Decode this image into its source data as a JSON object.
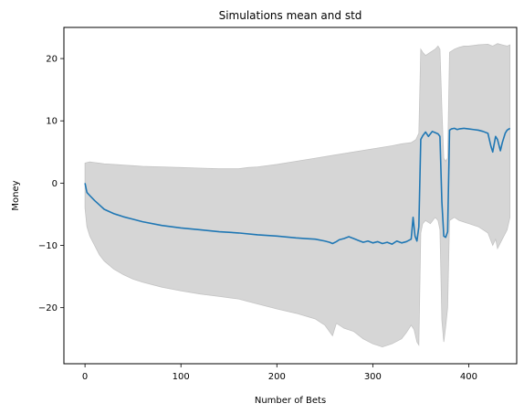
{
  "chart_data": {
    "type": "line",
    "title": "Simulations mean and std",
    "xlabel": "Number of Bets",
    "ylabel": "Money",
    "xlim": [
      -22,
      450
    ],
    "ylim": [
      -29,
      25
    ],
    "xticks": [
      0,
      100,
      200,
      300,
      400
    ],
    "xtick_labels": [
      "0",
      "100",
      "200",
      "300",
      "400"
    ],
    "yticks": [
      -20,
      -10,
      0,
      10,
      20
    ],
    "ytick_labels": [
      "−20",
      "−10",
      "0",
      "10",
      "20"
    ],
    "grid": false,
    "legend": "none",
    "colors": {
      "mean": "#1f77b4",
      "band": "#d6d6d6",
      "band_edge": "#c4c4c4"
    },
    "series": [
      {
        "role": "mean",
        "x": [
          0,
          2,
          5,
          10,
          15,
          20,
          30,
          40,
          50,
          60,
          80,
          100,
          120,
          140,
          160,
          180,
          200,
          220,
          230,
          240,
          250,
          255,
          258,
          262,
          265,
          270,
          275,
          280,
          285,
          290,
          295,
          300,
          305,
          310,
          315,
          320,
          325,
          330,
          335,
          340,
          342,
          344,
          346,
          348,
          350,
          352,
          355,
          358,
          362,
          365,
          368,
          370,
          372,
          374,
          376,
          378,
          380,
          382,
          385,
          388,
          390,
          395,
          400,
          405,
          410,
          415,
          420,
          423,
          425,
          428,
          430,
          433,
          435,
          438,
          440,
          443
        ],
        "y": [
          0,
          -1.5,
          -2,
          -2.8,
          -3.5,
          -4.2,
          -4.9,
          -5.4,
          -5.8,
          -6.2,
          -6.8,
          -7.2,
          -7.5,
          -7.8,
          -8.0,
          -8.3,
          -8.5,
          -8.8,
          -8.9,
          -9.0,
          -9.3,
          -9.5,
          -9.7,
          -9.4,
          -9.1,
          -8.9,
          -8.6,
          -8.9,
          -9.2,
          -9.5,
          -9.3,
          -9.6,
          -9.4,
          -9.7,
          -9.5,
          -9.8,
          -9.3,
          -9.6,
          -9.4,
          -9.0,
          -5.5,
          -8.5,
          -9.3,
          -7.0,
          7.0,
          7.6,
          8.2,
          7.5,
          8.3,
          8.1,
          7.9,
          7.5,
          -3.0,
          -8.5,
          -8.7,
          -7.8,
          8.5,
          8.7,
          8.8,
          8.6,
          8.7,
          8.8,
          8.7,
          8.6,
          8.5,
          8.3,
          8.0,
          6.0,
          5.0,
          7.5,
          7.0,
          5.2,
          6.5,
          8.0,
          8.5,
          8.8
        ]
      },
      {
        "role": "std_upper",
        "x": [
          0,
          2,
          5,
          10,
          15,
          20,
          30,
          40,
          50,
          60,
          80,
          100,
          120,
          140,
          160,
          170,
          180,
          200,
          220,
          240,
          260,
          280,
          300,
          320,
          330,
          340,
          345,
          348,
          350,
          352,
          355,
          360,
          365,
          368,
          370,
          372,
          374,
          376,
          378,
          380,
          382,
          385,
          390,
          395,
          400,
          410,
          420,
          425,
          430,
          435,
          440,
          443
        ],
        "y": [
          3.2,
          3.3,
          3.4,
          3.3,
          3.2,
          3.1,
          3.0,
          2.9,
          2.8,
          2.7,
          2.6,
          2.5,
          2.4,
          2.3,
          2.3,
          2.5,
          2.6,
          3.0,
          3.5,
          4.0,
          4.5,
          5.0,
          5.5,
          6.0,
          6.3,
          6.5,
          7.0,
          8.0,
          21.5,
          21.0,
          20.5,
          21.0,
          21.5,
          22.0,
          21.5,
          12.0,
          4.0,
          3.5,
          4.0,
          21.0,
          21.2,
          21.5,
          21.8,
          22.0,
          22.0,
          22.2,
          22.3,
          22.0,
          22.4,
          22.2,
          22.0,
          22.2
        ]
      },
      {
        "role": "std_lower",
        "x": [
          0,
          2,
          5,
          10,
          15,
          20,
          30,
          40,
          50,
          60,
          80,
          100,
          120,
          140,
          160,
          180,
          200,
          220,
          240,
          250,
          258,
          262,
          270,
          280,
          290,
          300,
          310,
          320,
          330,
          335,
          340,
          343,
          346,
          348,
          350,
          352,
          355,
          360,
          365,
          368,
          370,
          372,
          374,
          376,
          378,
          380,
          385,
          390,
          400,
          410,
          420,
          425,
          428,
          430,
          435,
          440,
          443
        ],
        "y": [
          -4.0,
          -7.0,
          -8.5,
          -10.0,
          -11.5,
          -12.5,
          -13.8,
          -14.7,
          -15.4,
          -15.9,
          -16.7,
          -17.3,
          -17.8,
          -18.2,
          -18.6,
          -19.4,
          -20.2,
          -20.9,
          -21.8,
          -22.8,
          -24.5,
          -22.5,
          -23.3,
          -23.8,
          -25.0,
          -25.8,
          -26.3,
          -25.8,
          -25.0,
          -24.0,
          -22.8,
          -23.5,
          -25.5,
          -26.0,
          -8.0,
          -6.5,
          -6.0,
          -6.5,
          -5.5,
          -6.0,
          -7.5,
          -22.0,
          -25.5,
          -23.0,
          -20.0,
          -6.0,
          -5.5,
          -6.0,
          -6.5,
          -7.0,
          -8.0,
          -10.0,
          -9.0,
          -10.5,
          -9.0,
          -7.5,
          -5.5
        ]
      }
    ]
  }
}
